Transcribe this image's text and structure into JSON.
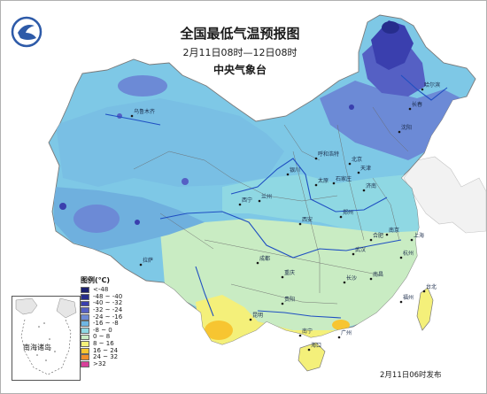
{
  "title": "全国最低气温预报图",
  "subtitle": "2月11日08时—12日08时",
  "issuer": "中央气象台",
  "release_note": "2月11日06时发布",
  "legend": {
    "title": "图例(℃)",
    "items": [
      {
        "label": "<-48",
        "color": "#1a1f6e"
      },
      {
        "label": "-48 ~ -40",
        "color": "#262d8c"
      },
      {
        "label": "-40 ~ -32",
        "color": "#3a3fae"
      },
      {
        "label": "-32 ~ -24",
        "color": "#5560c4"
      },
      {
        "label": "-24 ~ -16",
        "color": "#6c8ad6"
      },
      {
        "label": "-16 ~ -8",
        "color": "#6fb6e3"
      },
      {
        "label": "-8 ~ 0",
        "color": "#8fd8e3"
      },
      {
        "label": "0 ~ 8",
        "color": "#c9ecc3"
      },
      {
        "label": "8 ~ 16",
        "color": "#f4f07a"
      },
      {
        "label": "16 ~ 24",
        "color": "#f7c531"
      },
      {
        "label": "24 ~ 32",
        "color": "#f08f2c"
      },
      {
        "label": ">32",
        "color": "#d8409a"
      }
    ]
  },
  "inset_label": "南海诸岛",
  "cities": [
    {
      "name": "乌鲁木齐",
      "key": "urumqi"
    },
    {
      "name": "哈尔滨",
      "key": "harbin"
    },
    {
      "name": "长春",
      "key": "changchun"
    },
    {
      "name": "沈阳",
      "key": "shenyang"
    },
    {
      "name": "呼和浩特",
      "key": "hohhot"
    },
    {
      "name": "北京",
      "key": "beijing"
    },
    {
      "name": "天津",
      "key": "tianjin"
    },
    {
      "name": "石家庄",
      "key": "shijiazhuang"
    },
    {
      "name": "太原",
      "key": "taiyuan"
    },
    {
      "name": "济南",
      "key": "jinan"
    },
    {
      "name": "银川",
      "key": "yinchuan"
    },
    {
      "name": "兰州",
      "key": "lanzhou"
    },
    {
      "name": "西宁",
      "key": "xining"
    },
    {
      "name": "郑州",
      "key": "zhengzhou"
    },
    {
      "name": "西安",
      "key": "xian"
    },
    {
      "name": "合肥",
      "key": "hefei"
    },
    {
      "name": "南京",
      "key": "nanjing"
    },
    {
      "name": "上海",
      "key": "shanghai"
    },
    {
      "name": "杭州",
      "key": "hangzhou"
    },
    {
      "name": "武汉",
      "key": "wuhan"
    },
    {
      "name": "成都",
      "key": "chengdu"
    },
    {
      "name": "重庆",
      "key": "chongqing"
    },
    {
      "name": "拉萨",
      "key": "lhasa"
    },
    {
      "name": "长沙",
      "key": "changsha"
    },
    {
      "name": "南昌",
      "key": "nanchang"
    },
    {
      "name": "贵阳",
      "key": "guiyang"
    },
    {
      "name": "昆明",
      "key": "kunming"
    },
    {
      "name": "福州",
      "key": "fuzhou"
    },
    {
      "name": "台北",
      "key": "taipei"
    },
    {
      "name": "南宁",
      "key": "nanning"
    },
    {
      "name": "广州",
      "key": "guangzhou"
    },
    {
      "name": "海口",
      "key": "haikou"
    }
  ]
}
